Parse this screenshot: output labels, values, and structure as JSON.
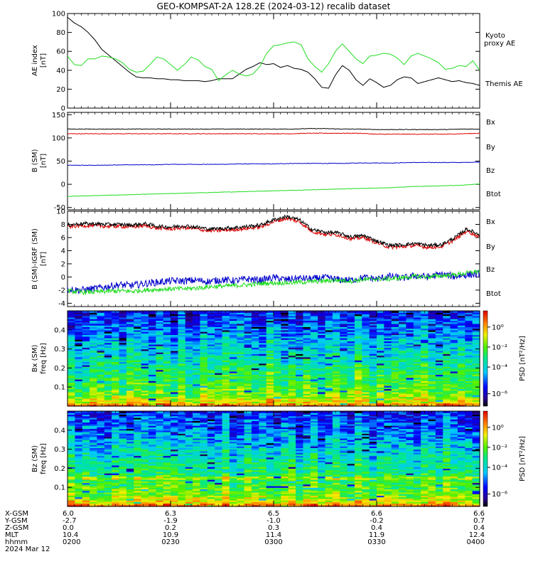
{
  "title": "GEO-KOMPSAT-2A 128.2E (2024-03-12) recalib dataset",
  "colors": {
    "black": "#000000",
    "red": "#dd0000",
    "green": "#22dd22",
    "blue": "#0000cc",
    "kyoto": "#22dd22"
  },
  "chart_data": [
    {
      "type": "line",
      "ylabel": "AE index\n[nT]",
      "ylim": [
        0,
        100
      ],
      "yticks": [
        "0",
        "20",
        "40",
        "60",
        "80",
        "100"
      ],
      "x": [
        0,
        1,
        2,
        3,
        4,
        5,
        6,
        7,
        8,
        9,
        10,
        11,
        12,
        13,
        14,
        15,
        16,
        17,
        18,
        19,
        20,
        21,
        22,
        23,
        24,
        25,
        26,
        27,
        28,
        29,
        30,
        31,
        32,
        33,
        34,
        35,
        36,
        37,
        38,
        39,
        40,
        41,
        42,
        43,
        44,
        45,
        46,
        47,
        48,
        49,
        50,
        51,
        52,
        53,
        54,
        55,
        56,
        57,
        58,
        59,
        60
      ],
      "series": [
        {
          "name": "Themis AE",
          "color": "black",
          "values": [
            96,
            90,
            86,
            80,
            72,
            62,
            56,
            50,
            44,
            38,
            33,
            32,
            32,
            31,
            31,
            30,
            30,
            29,
            29,
            29,
            28,
            29,
            31,
            31,
            31,
            36,
            41,
            44,
            48,
            46,
            47,
            43,
            45,
            42,
            41,
            38,
            31,
            22,
            21,
            35,
            45,
            40,
            30,
            24,
            31,
            27,
            22,
            24,
            30,
            33,
            32,
            26,
            28,
            30,
            32,
            30,
            28,
            29,
            27,
            26,
            24
          ]
        },
        {
          "name": "Kyoto\nproxy AE",
          "color": "kyoto",
          "values": [
            55,
            46,
            45,
            52,
            52,
            55,
            54,
            52,
            48,
            41,
            38,
            39,
            46,
            54,
            52,
            46,
            40,
            46,
            54,
            51,
            44,
            41,
            29,
            35,
            40,
            36,
            34,
            36,
            44,
            58,
            66,
            67,
            69,
            70,
            67,
            52,
            44,
            38,
            47,
            60,
            68,
            60,
            52,
            47,
            55,
            56,
            58,
            57,
            53,
            46,
            55,
            58,
            55,
            52,
            48,
            41,
            42,
            45,
            44,
            50,
            40
          ]
        }
      ]
    },
    {
      "type": "line",
      "ylabel": "B (SM)\n[nT]",
      "ylim": [
        -55,
        155
      ],
      "yticks": [
        "-50",
        "0",
        "50",
        "100",
        "150"
      ],
      "series": [
        {
          "name": "Bx",
          "color": "blue",
          "values": [
            41,
            41,
            41,
            42,
            42,
            42,
            43,
            43,
            43,
            43,
            44,
            44,
            44,
            45,
            45,
            45,
            45,
            46,
            46,
            46,
            47,
            47,
            47,
            47,
            48
          ]
        },
        {
          "name": "By",
          "color": "green",
          "values": [
            -26,
            -25,
            -24,
            -23,
            -22,
            -21,
            -20,
            -19,
            -18,
            -17,
            -16,
            -15,
            -14,
            -13,
            -12,
            -11,
            -10,
            -9,
            -8,
            -7,
            -5,
            -4,
            -3,
            -2,
            1
          ]
        },
        {
          "name": "Bz",
          "color": "red",
          "values": [
            109,
            109,
            109,
            109,
            109,
            109,
            109,
            109,
            109,
            109,
            109,
            109,
            109,
            109,
            110,
            110,
            110,
            110,
            108,
            108,
            108,
            108,
            108,
            109,
            110
          ]
        },
        {
          "name": "Btot",
          "color": "black",
          "values": [
            119,
            119,
            119,
            119,
            119,
            119,
            119,
            119,
            119,
            119,
            119,
            119,
            119,
            119,
            120,
            120,
            119,
            119,
            118,
            118,
            118,
            118,
            118,
            119,
            119
          ]
        }
      ]
    },
    {
      "type": "line",
      "ylabel": "B (SM)-IGRF (SM)\n[nT]",
      "ylim": [
        -4.5,
        10
      ],
      "yticks": [
        "-4",
        "-2",
        "0",
        "2",
        "4",
        "6",
        "8",
        "10"
      ],
      "series": [
        {
          "name": "Bx",
          "color": "blue",
          "values": [
            -1.9,
            -2.0,
            -1.8,
            -1.5,
            -1.2,
            -1.3,
            -1.0,
            -0.8,
            -0.6,
            -0.6,
            -0.5,
            -0.7,
            -0.4,
            -0.6,
            -0.3,
            -0.5,
            -0.1,
            -0.4,
            -0.2,
            -0.3,
            -0.1,
            -0.4,
            -0.5,
            -0.1,
            -0.3,
            0.1,
            -0.2,
            0.2,
            0.0,
            0.4,
            0.1,
            0.3,
            0.5
          ]
        },
        {
          "name": "By",
          "color": "green",
          "values": [
            -2.1,
            -2.3,
            -2.3,
            -2.2,
            -2.1,
            -2.2,
            -2.0,
            -1.9,
            -1.8,
            -1.8,
            -1.7,
            -1.5,
            -1.4,
            -1.3,
            -1.2,
            -1.0,
            -0.9,
            -0.9,
            -0.8,
            -0.7,
            -0.6,
            -0.5,
            -0.6,
            -0.4,
            -0.3,
            -0.3,
            -0.1,
            0.1,
            0.0,
            0.2,
            0.3,
            0.6,
            0.9
          ]
        },
        {
          "name": "Bz",
          "color": "red",
          "values": [
            7.6,
            7.8,
            7.8,
            7.7,
            7.7,
            7.6,
            7.8,
            7.4,
            7.3,
            7.5,
            7.3,
            7.0,
            7.1,
            7.2,
            7.4,
            7.6,
            8.4,
            8.9,
            8.4,
            6.9,
            6.5,
            6.4,
            5.8,
            6.0,
            5.2,
            4.5,
            4.6,
            4.8,
            4.5,
            4.6,
            5.6,
            7.0,
            6.1
          ]
        },
        {
          "name": "Btot",
          "color": "black",
          "values": [
            7.9,
            8.1,
            8.1,
            8.0,
            8.0,
            7.9,
            8.1,
            7.7,
            7.6,
            7.8,
            7.6,
            7.3,
            7.4,
            7.5,
            7.7,
            7.9,
            8.7,
            9.2,
            8.7,
            7.2,
            6.8,
            6.7,
            6.1,
            6.3,
            5.5,
            4.8,
            4.9,
            5.1,
            4.8,
            4.9,
            5.9,
            7.3,
            6.4
          ]
        }
      ]
    },
    {
      "type": "heatmap",
      "ylabel": "Bx (SM)\nfreq [Hz]",
      "ylim": [
        0,
        0.5
      ],
      "yticks": [
        "0.1",
        "0.2",
        "0.3",
        "0.4"
      ],
      "colorbar_label": "PSD [nT²/Hz]",
      "colorbar_ticks": [
        "10⁰",
        "10⁻²",
        "10⁻⁴",
        "10⁻⁶"
      ]
    },
    {
      "type": "heatmap",
      "ylabel": "Bz (SM)\nfreq [Hz]",
      "ylim": [
        0,
        0.5
      ],
      "yticks": [
        "0.1",
        "0.2",
        "0.3",
        "0.4"
      ],
      "colorbar_label": "PSD [nT²/Hz]",
      "colorbar_ticks": [
        "10⁰",
        "10⁻²",
        "10⁻⁴",
        "10⁻⁶"
      ]
    }
  ],
  "ephemeris": {
    "labels": [
      "X-GSM",
      "Y-GSM",
      "Z-GSM",
      "MLT",
      "hhmm",
      "2024 Mar 12"
    ],
    "columns": [
      [
        "6.0",
        "-2.7",
        "0.0",
        "10.4",
        "0200"
      ],
      [
        "6.3",
        "-1.9",
        "0.2",
        "10.9",
        "0230"
      ],
      [
        "6.5",
        "-1.0",
        "0.3",
        "11.4",
        "0300"
      ],
      [
        "6.6",
        "-0.2",
        "0.4",
        "11.9",
        "0330"
      ],
      [
        "6.6",
        "0.7",
        "0.4",
        "12.4",
        "0400"
      ]
    ]
  }
}
